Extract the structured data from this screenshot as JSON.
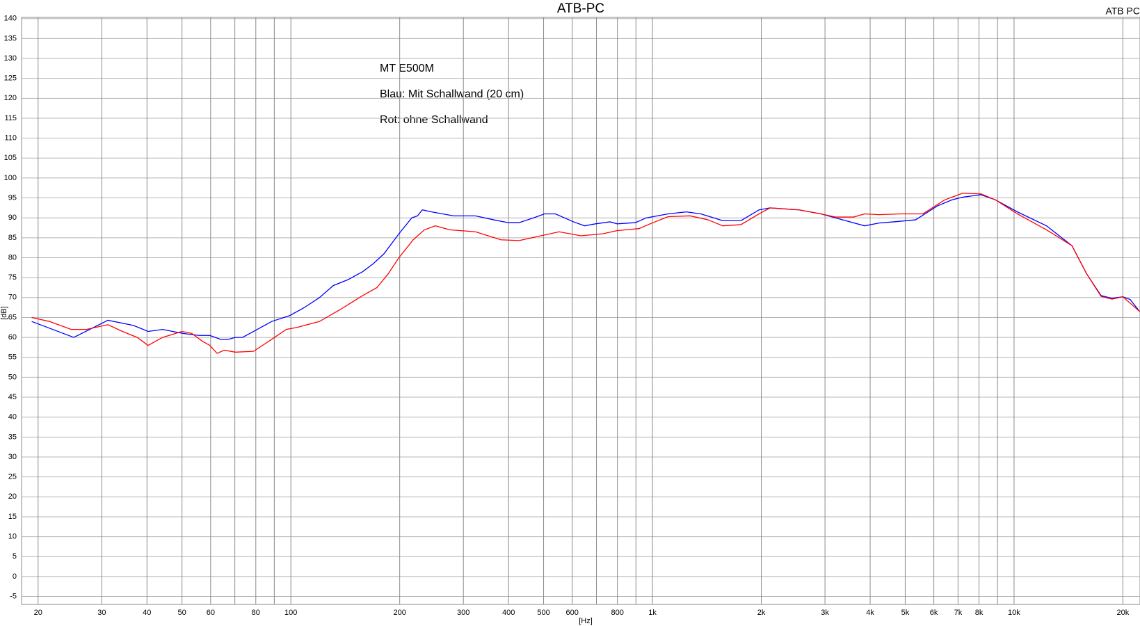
{
  "chart_data": {
    "type": "line",
    "title": "ATB-PC",
    "corner_label": "ATB PC",
    "x_label": "[Hz]",
    "y_label": "[dB]",
    "annotations": [
      "MT E500M",
      "Blau: Mit Schallwand (20 cm)",
      "Rot:  ohne Schallwand"
    ],
    "x_scale": "log",
    "grid": true,
    "xlim": [
      18,
      22300
    ],
    "ylim": [
      -7,
      140.3
    ],
    "yticks": [
      -5,
      0,
      5,
      10,
      15,
      20,
      25,
      30,
      35,
      40,
      45,
      50,
      55,
      60,
      65,
      70,
      75,
      80,
      85,
      90,
      95,
      100,
      105,
      110,
      115,
      120,
      125,
      130,
      135,
      140
    ],
    "xticks": [
      20,
      30,
      40,
      50,
      60,
      80,
      100,
      200,
      300,
      400,
      500,
      600,
      800,
      {
        "value": 1000,
        "label": "1k"
      },
      {
        "value": 2000,
        "label": "2k"
      },
      {
        "value": 3000,
        "label": "3k"
      },
      {
        "value": 4000,
        "label": "4k"
      },
      {
        "value": 5000,
        "label": "5k"
      },
      {
        "value": 6000,
        "label": "6k"
      },
      {
        "value": 7000,
        "label": "7k"
      },
      {
        "value": 8000,
        "label": "8k"
      },
      {
        "value": 10000,
        "label": "10k"
      },
      {
        "value": 20000,
        "label": "20k"
      }
    ],
    "xgrid_minor": [
      70,
      90,
      700,
      900,
      9000
    ],
    "series": [
      {
        "name": "Blau",
        "color": "#0000ff",
        "x": [
          19.2,
          25.1,
          31.2,
          36.7,
          40.3,
          44.2,
          50.3,
          55.7,
          59.7,
          64.0,
          67.0,
          70.2,
          73.5,
          80.7,
          88.5,
          99.4,
          109,
          120,
          131,
          144,
          158,
          169,
          181,
          199,
          216,
          224,
          231,
          245,
          263,
          282,
          324,
          364,
          399,
          428,
          469,
          503,
          539,
          605,
          649,
          696,
          763,
          799,
          897,
          962,
          1105,
          1241,
          1361,
          1564,
          1757,
          1972,
          2115,
          2544,
          2924,
          3360,
          3861,
          4236,
          4648,
          5341,
          6137,
          6732,
          7218,
          8103,
          8890,
          10215,
          12295,
          14463,
          15865,
          17402,
          18659,
          20000,
          20950,
          22250
        ],
        "values": [
          64,
          60,
          64.3,
          63,
          61.5,
          62,
          61,
          60.5,
          60.5,
          59.5,
          59.5,
          60,
          60,
          62,
          64,
          65.5,
          67.5,
          70,
          73,
          74.5,
          76.5,
          78.5,
          81,
          86,
          90,
          90.5,
          92,
          91.5,
          91,
          90.5,
          90.5,
          89.5,
          88.8,
          88.8,
          90,
          91,
          91,
          89,
          88,
          88.5,
          89,
          88.5,
          88.8,
          90,
          91,
          91.5,
          91,
          89.3,
          89.3,
          92,
          92.5,
          92,
          91,
          89.5,
          88,
          88.7,
          89,
          89.5,
          93,
          94.5,
          95.2,
          95.8,
          94.5,
          91.5,
          88,
          83,
          76,
          70.5,
          69.8,
          70.2,
          69.5,
          66.5
        ]
      },
      {
        "name": "Rot",
        "color": "#ff0000",
        "x": [
          19.2,
          21.5,
          24.7,
          27.2,
          31.2,
          34.2,
          37.6,
          40.3,
          44.2,
          50.0,
          53.2,
          57.0,
          59.7,
          62.5,
          65.5,
          70.2,
          78.8,
          88.5,
          97.1,
          104,
          120,
          137,
          158,
          173,
          186,
          199,
          218,
          234,
          251,
          275,
          324,
          381,
          428,
          480,
          552,
          634,
          729,
          799,
          918,
          985,
          1105,
          1270,
          1426,
          1564,
          1757,
          1972,
          2115,
          2544,
          2924,
          3208,
          3601,
          3861,
          4236,
          4867,
          5595,
          6428,
          7218,
          8103,
          8890,
          10215,
          12295,
          14463,
          15865,
          17402,
          18659,
          20000,
          22250
        ],
        "values": [
          65,
          64,
          62,
          62,
          63.2,
          61.5,
          60,
          58,
          60,
          61.5,
          61,
          59,
          58,
          56,
          56.8,
          56.3,
          56.5,
          59.5,
          62,
          62.5,
          64,
          67,
          70.5,
          72.5,
          76,
          80,
          84.5,
          87,
          88,
          87,
          86.5,
          84.5,
          84.3,
          85.3,
          86.5,
          85.5,
          86,
          86.8,
          87.3,
          88.5,
          90.3,
          90.5,
          89.5,
          88,
          88.3,
          91,
          92.5,
          92,
          91,
          90.2,
          90.2,
          91,
          90.8,
          91,
          91,
          94.5,
          96.2,
          96,
          94.5,
          91,
          87,
          83,
          76,
          70.3,
          69.6,
          70.2,
          66.5
        ]
      }
    ]
  }
}
